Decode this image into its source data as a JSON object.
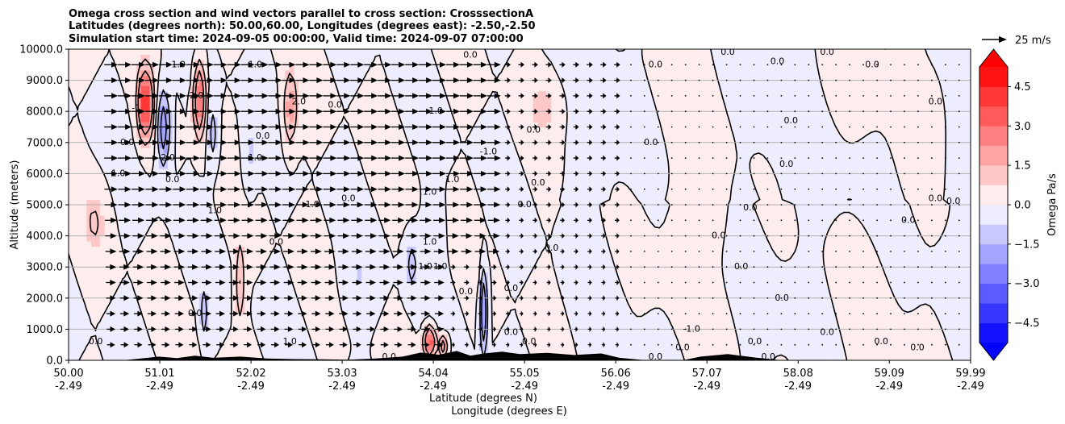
{
  "chart_data": {
    "type": "heatmap",
    "title_lines": [
      "Omega cross section and wind vectors parallel to cross section: CrosssectionA",
      "Latitudes (degrees north): 50.00,60.00, Longitudes (degrees east): -2.50,-2.50",
      "Simulation start time: 2024-09-05 00:00:00, Valid time: 2024-09-07 07:00:00"
    ],
    "ylabel": "Altitude (meters)",
    "xlabel_lines": [
      "Latitude (degrees N)",
      "Longitude (degrees E)"
    ],
    "ylim": [
      0,
      10000
    ],
    "y_ticks": [
      0,
      1000,
      2000,
      3000,
      4000,
      5000,
      6000,
      7000,
      8000,
      9000,
      10000
    ],
    "y_tick_labels": [
      "0.0",
      "1000.0",
      "2000.0",
      "3000.0",
      "4000.0",
      "5000.0",
      "6000.0",
      "7000.0",
      "8000.0",
      "9000.0",
      "10000.0"
    ],
    "xlim": [
      50.0,
      59.99
    ],
    "x_ticks": [
      {
        "lat": "50.00",
        "lon": "-2.49",
        "value": 50.0
      },
      {
        "lat": "51.01",
        "lon": "-2.49",
        "value": 51.01
      },
      {
        "lat": "52.02",
        "lon": "-2.49",
        "value": 52.02
      },
      {
        "lat": "53.03",
        "lon": "-2.49",
        "value": 53.03
      },
      {
        "lat": "54.04",
        "lon": "-2.49",
        "value": 54.04
      },
      {
        "lat": "55.05",
        "lon": "-2.49",
        "value": 55.05
      },
      {
        "lat": "56.06",
        "lon": "-2.49",
        "value": 56.06
      },
      {
        "lat": "57.07",
        "lon": "-2.49",
        "value": 57.07
      },
      {
        "lat": "58.08",
        "lon": "-2.49",
        "value": 58.08
      },
      {
        "lat": "59.09",
        "lon": "-2.49",
        "value": 59.09
      },
      {
        "lat": "59.99",
        "lon": "-2.49",
        "value": 59.99
      }
    ],
    "colorbar": {
      "label": "Omega Pa/s",
      "range": [
        -5.25,
        5.25
      ],
      "ticks": [
        4.5,
        3.0,
        1.5,
        0.0,
        -1.5,
        -3.0,
        -4.5
      ],
      "tick_labels": [
        "4.5",
        "3.0",
        "1.5",
        "0.0",
        "−1.5",
        "−3.0",
        "−4.5"
      ],
      "extend": "both",
      "colormap": "bwr",
      "low_color": "#0000ff",
      "high_color": "#ff0000"
    },
    "quiver_key": {
      "label": "25 m/s",
      "value": 25
    },
    "omega_features": [
      {
        "center": 50.85,
        "z_range": [
          7000,
          9500
        ],
        "value": 4.5,
        "width": 0.08
      },
      {
        "center": 51.05,
        "z_range": [
          6000,
          9000
        ],
        "value": -3.0,
        "width": 0.07
      },
      {
        "center": 51.45,
        "z_range": [
          7000,
          9800
        ],
        "value": 4.0,
        "width": 0.06
      },
      {
        "center": 51.6,
        "z_range": [
          6000,
          8500
        ],
        "value": -1.5,
        "width": 0.06
      },
      {
        "center": 52.45,
        "z_range": [
          6500,
          9500
        ],
        "value": 2.0,
        "width": 0.08
      },
      {
        "center": 52.0,
        "z_range": [
          5000,
          8000
        ],
        "value": -1.0,
        "width": 0.08
      },
      {
        "center": 51.9,
        "z_range": [
          1000,
          4000
        ],
        "value": 2.0,
        "width": 0.05
      },
      {
        "center": 51.5,
        "z_range": [
          500,
          2500
        ],
        "value": -1.5,
        "width": 0.04
      },
      {
        "center": 54.0,
        "z_range": [
          0,
          1200
        ],
        "value": 4.5,
        "width": 0.06
      },
      {
        "center": 54.15,
        "z_range": [
          0,
          900
        ],
        "value": 3.0,
        "width": 0.05
      },
      {
        "center": 54.6,
        "z_range": [
          0,
          3200
        ],
        "value": -3.5,
        "width": 0.04
      },
      {
        "center": 53.8,
        "z_range": [
          2000,
          4200
        ],
        "value": -1.2,
        "width": 0.08
      },
      {
        "center": 54.05,
        "z_range": [
          2500,
          5500
        ],
        "value": -0.8,
        "width": 0.1
      },
      {
        "center": 55.3,
        "z_range": [
          7000,
          9500
        ],
        "value": 0.7,
        "width": 0.25
      },
      {
        "center": 57.0,
        "z_range": [
          3000,
          6000
        ],
        "value": 0.5,
        "width": 0.3
      },
      {
        "center": 58.8,
        "z_range": [
          4000,
          9000
        ],
        "value": -0.4,
        "width": 0.4
      },
      {
        "center": 59.6,
        "z_range": [
          6000,
          10000
        ],
        "value": 0.6,
        "width": 0.2
      },
      {
        "center": 50.3,
        "z_range": [
          3000,
          6000
        ],
        "value": 0.8,
        "width": 0.15
      },
      {
        "center": 53.2,
        "z_range": [
          1000,
          4000
        ],
        "value": -0.6,
        "width": 0.2
      }
    ],
    "contour_labels": [
      {
        "text": "0.0",
        "x": 50.3,
        "z": 600
      },
      {
        "text": "0.0",
        "x": 50.65,
        "z": 7000
      },
      {
        "text": "1.0",
        "x": 50.55,
        "z": 6000
      },
      {
        "text": "-1",
        "x": 50.75,
        "z": 8100
      },
      {
        "text": "-1.0",
        "x": 51.2,
        "z": 9500
      },
      {
        "text": "2.0",
        "x": 51.1,
        "z": 6500
      },
      {
        "text": "0.0",
        "x": 51.15,
        "z": 5800
      },
      {
        "text": "-2.0",
        "x": 51.4,
        "z": 8500
      },
      {
        "text": "1.0",
        "x": 51.62,
        "z": 4800
      },
      {
        "text": "0.0",
        "x": 52.15,
        "z": 7200
      },
      {
        "text": "-1.0",
        "x": 52.05,
        "z": 6500
      },
      {
        "text": "-1.0",
        "x": 52.05,
        "z": 9500
      },
      {
        "text": "2.0",
        "x": 52.55,
        "z": 8300
      },
      {
        "text": "0.0",
        "x": 52.95,
        "z": 8200
      },
      {
        "text": "1.0",
        "x": 52.7,
        "z": 5000
      },
      {
        "text": "0.0",
        "x": 53.1,
        "z": 5200
      },
      {
        "text": "0.0",
        "x": 52.3,
        "z": 3800
      },
      {
        "text": "0.0",
        "x": 51.4,
        "z": 1500
      },
      {
        "text": "1.0",
        "x": 52.45,
        "z": 600
      },
      {
        "text": "0.0",
        "x": 53.55,
        "z": 100
      },
      {
        "text": "1.0",
        "x": 54.0,
        "z": 3800
      },
      {
        "text": "1.0",
        "x": 53.95,
        "z": 3000
      },
      {
        "text": "-1.0",
        "x": 54.1,
        "z": 3000
      },
      {
        "text": "1.0",
        "x": 54.0,
        "z": 5400
      },
      {
        "text": "-1.0",
        "x": 54.05,
        "z": 8000
      },
      {
        "text": "1.0",
        "x": 54.25,
        "z": 5800
      },
      {
        "text": "0.0",
        "x": 54.4,
        "z": 2200
      },
      {
        "text": "0.0",
        "x": 54.45,
        "z": 9800
      },
      {
        "text": "-1.0",
        "x": 54.65,
        "z": 6700
      },
      {
        "text": "0.0",
        "x": 54.9,
        "z": 2300
      },
      {
        "text": "0.0",
        "x": 55.15,
        "z": 7400
      },
      {
        "text": "0.0",
        "x": 55.05,
        "z": 5000
      },
      {
        "text": "0.0",
        "x": 55.2,
        "z": 5700
      },
      {
        "text": "0.0",
        "x": 55.35,
        "z": 3600
      },
      {
        "text": "0.0",
        "x": 54.9,
        "z": 900
      },
      {
        "text": "0.0",
        "x": 55.1,
        "z": 600
      },
      {
        "text": "0.0",
        "x": 56.45,
        "z": 7000
      },
      {
        "text": "0.0",
        "x": 56.5,
        "z": 9500
      },
      {
        "text": "0.0",
        "x": 56.5,
        "z": 100
      },
      {
        "text": "0.0",
        "x": 56.8,
        "z": 400
      },
      {
        "text": "0.0",
        "x": 57.2,
        "z": 4000
      },
      {
        "text": "-1.0",
        "x": 56.9,
        "z": 1000
      },
      {
        "text": "0.0",
        "x": 57.45,
        "z": 3000
      },
      {
        "text": "0.0",
        "x": 57.55,
        "z": 4900
      },
      {
        "text": "0.0",
        "x": 57.6,
        "z": 600
      },
      {
        "text": "0.0",
        "x": 58.0,
        "z": 7700
      },
      {
        "text": "0.0",
        "x": 57.95,
        "z": 6300
      },
      {
        "text": "0.0",
        "x": 57.9,
        "z": 2000
      },
      {
        "text": "0.0",
        "x": 57.75,
        "z": 100
      },
      {
        "text": "0.0",
        "x": 57.3,
        "z": 9900
      },
      {
        "text": "0.0",
        "x": 57.85,
        "z": 9600
      },
      {
        "text": "0.0",
        "x": 58.4,
        "z": 9900
      },
      {
        "text": "0.0",
        "x": 58.9,
        "z": 9500
      },
      {
        "text": "0.0",
        "x": 59.6,
        "z": 8300
      },
      {
        "text": "0.0",
        "x": 59.6,
        "z": 5200
      },
      {
        "text": "0.0",
        "x": 59.8,
        "z": 5100
      },
      {
        "text": "0.0",
        "x": 59.3,
        "z": 4500
      },
      {
        "text": "0.0",
        "x": 59.0,
        "z": 600
      },
      {
        "text": "0.0",
        "x": 59.4,
        "z": 400
      },
      {
        "text": "0.0",
        "x": 58.4,
        "z": 900
      }
    ]
  }
}
